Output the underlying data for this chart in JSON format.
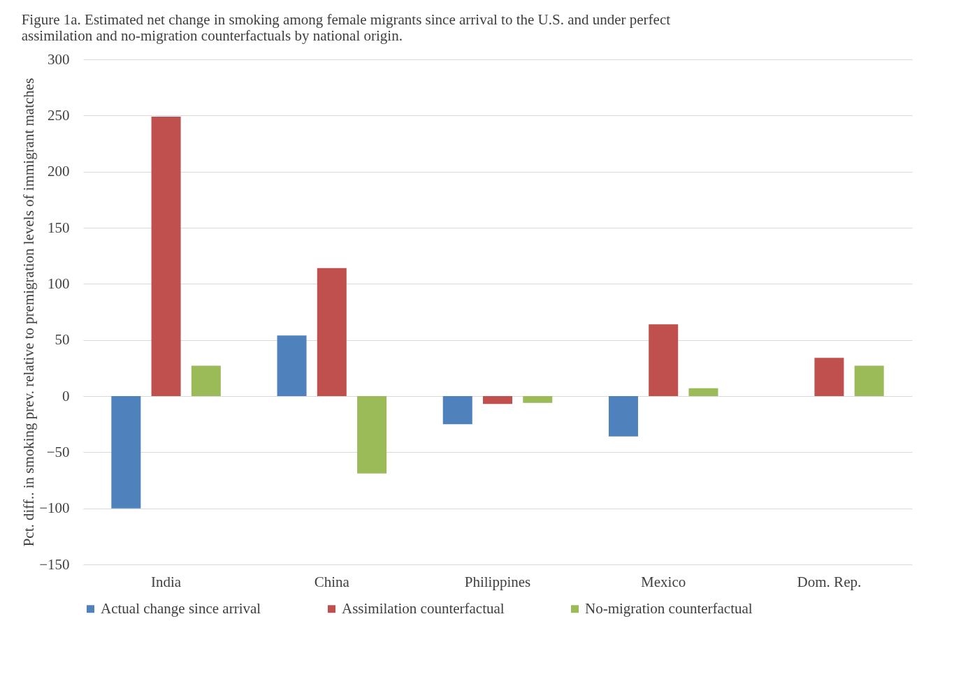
{
  "chart_data": {
    "type": "bar",
    "title": [
      "Figure 1a. Estimated net change in smoking among female migrants since arrival to the U.S. and under perfect",
      "assimilation and no-migration counterfactuals by national origin."
    ],
    "ylabel": "Pct. diff.. in smoking prev. relative to premigration levels of  immigrant matches",
    "categories": [
      "India",
      "China",
      "Philippines",
      "Mexico",
      "Dom. Rep."
    ],
    "series": [
      {
        "name": "Actual change since arrival",
        "color": "#4f81bd",
        "values": [
          -100,
          54,
          -25,
          -36,
          null
        ]
      },
      {
        "name": "Assimilation counterfactual",
        "color": "#c0504d",
        "values": [
          249,
          114,
          -7,
          64,
          34
        ]
      },
      {
        "name": "No-migration counterfactual",
        "color": "#9bbb59",
        "values": [
          27,
          -69,
          -6,
          7,
          27
        ]
      }
    ],
    "ylim": [
      -150,
      300
    ],
    "yticks": [
      -150,
      -100,
      -50,
      0,
      50,
      100,
      150,
      200,
      250,
      300
    ],
    "grid": "y",
    "legend": "bottom"
  }
}
